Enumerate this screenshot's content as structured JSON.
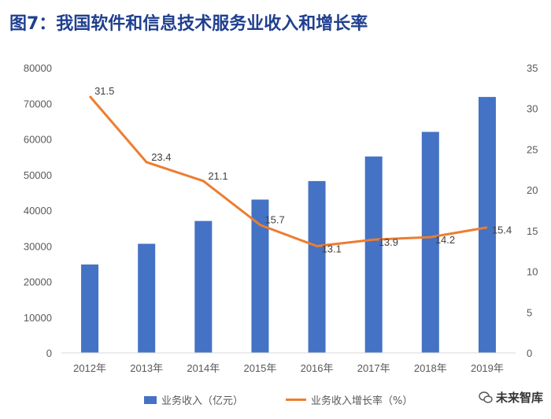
{
  "title": "图7：我国软件和信息技术服务业收入和增长率",
  "watermark": "未来智库",
  "colors": {
    "bar": "#4472c4",
    "line": "#ed7d31",
    "title": "#1f3f8f"
  },
  "chart_data": {
    "type": "bar+line",
    "categories": [
      "2012年",
      "2013年",
      "2014年",
      "2015年",
      "2016年",
      "2017年",
      "2018年",
      "2019年"
    ],
    "series": [
      {
        "name": "业务收入（亿元）",
        "type": "bar",
        "axis": "left",
        "values": [
          24800,
          30600,
          37000,
          43000,
          48200,
          55100,
          62000,
          71800
        ]
      },
      {
        "name": "业务收入增长率（%）",
        "type": "line",
        "axis": "right",
        "values": [
          31.5,
          23.4,
          21.1,
          15.7,
          13.1,
          13.9,
          14.2,
          15.4
        ],
        "labels": [
          "31.5",
          "23.4",
          "21.1",
          "15.7",
          "13.1",
          "13.9",
          "14.2",
          "15.4"
        ]
      }
    ],
    "y_left": {
      "min": 0,
      "max": 80000,
      "step": 10000,
      "ticks": [
        "0",
        "10000",
        "20000",
        "30000",
        "40000",
        "50000",
        "60000",
        "70000",
        "80000"
      ]
    },
    "y_right": {
      "min": 0,
      "max": 35,
      "step": 5,
      "ticks": [
        "0",
        "5",
        "10",
        "15",
        "20",
        "25",
        "30",
        "35"
      ]
    },
    "grid": false,
    "legend": "bottom"
  }
}
